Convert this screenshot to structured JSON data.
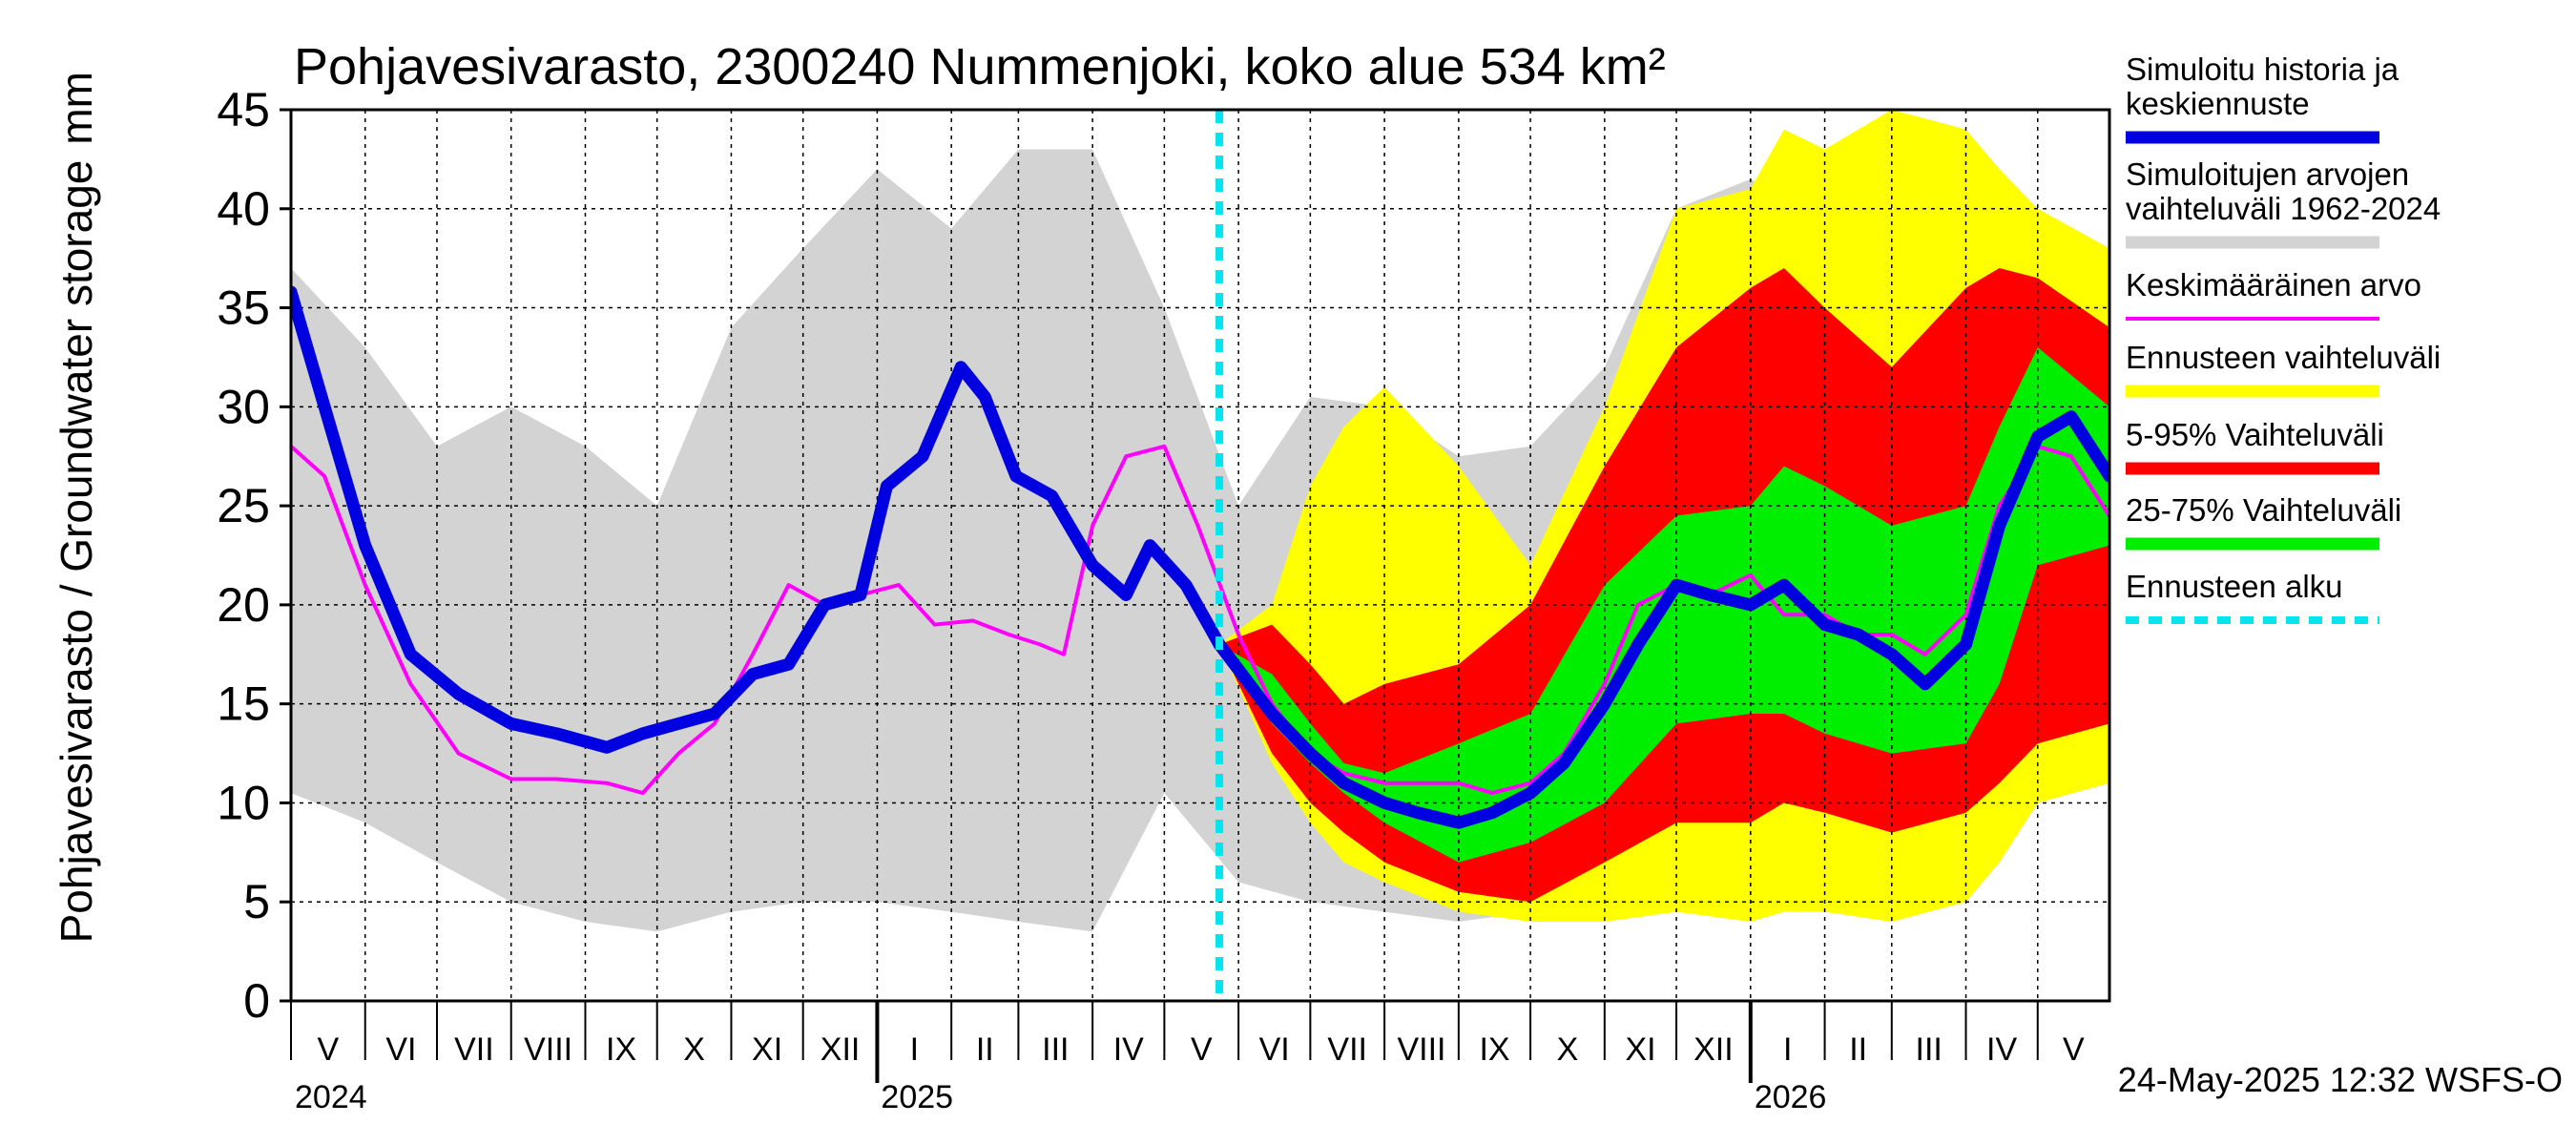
{
  "chart_data": {
    "type": "area",
    "title": "Pohjavesivarasto, 2300240 Nummenjoki, koko alue 534 km²",
    "ylabel": "Pohjavesivarasto / Groundwater storage",
    "yunit": "mm",
    "ylim": [
      0,
      45
    ],
    "yticks": [
      0,
      5,
      10,
      15,
      20,
      25,
      30,
      35,
      40,
      45
    ],
    "xlim": [
      "2024-05-01",
      "2026-05-31"
    ],
    "grid": true,
    "legend_position": "right",
    "timestamp": "24-May-2025 12:32 WSFS-O",
    "forecast_start": "2025-05-24",
    "months": [
      "V",
      "VI",
      "VII",
      "VIII",
      "IX",
      "X",
      "XI",
      "XII",
      "I",
      "II",
      "III",
      "IV",
      "V",
      "VI",
      "VII",
      "VIII",
      "IX",
      "X",
      "XI",
      "XII",
      "I",
      "II",
      "III",
      "IV",
      "V"
    ],
    "years": [
      "2024",
      "2025",
      "2026"
    ],
    "colors": {
      "history": "#0000e0",
      "range_hist": "#d3d3d3",
      "mean": "#ff00ff",
      "forecast_range": "#ffff00",
      "p5_95": "#ff0000",
      "p25_75": "#00ee00",
      "forecast_start": "#00e5ee"
    },
    "legend": [
      {
        "key": "history",
        "label": "Simuloitu historia ja keskiennuste"
      },
      {
        "key": "range_hist",
        "label": "Simuloitujen arvojen vaihteluväli 1962-2024"
      },
      {
        "key": "mean",
        "label": "Keskimääräinen arvo"
      },
      {
        "key": "forecast_range",
        "label": "Ennusteen vaihteluväli"
      },
      {
        "key": "p5_95",
        "label": "5-95% Vaihteluväli"
      },
      {
        "key": "p25_75",
        "label": "25-75% Vaihteluväli"
      },
      {
        "key": "forecast_start",
        "label": "Ennusteen alku"
      }
    ],
    "series": {
      "history": {
        "x": [
          "2024-05-01",
          "2024-05-15",
          "2024-06-01",
          "2024-06-20",
          "2024-07-10",
          "2024-08-01",
          "2024-08-20",
          "2024-09-10",
          "2024-09-25",
          "2024-10-10",
          "2024-10-25",
          "2024-11-10",
          "2024-11-25",
          "2024-12-10",
          "2024-12-25",
          "2025-01-05",
          "2025-01-20",
          "2025-02-05",
          "2025-02-15",
          "2025-02-28",
          "2025-03-15",
          "2025-04-01",
          "2025-04-15",
          "2025-04-25",
          "2025-05-10",
          "2025-05-24"
        ],
        "y": [
          35.8,
          30.0,
          23.0,
          17.5,
          15.5,
          14.0,
          13.5,
          12.8,
          13.5,
          14.0,
          14.5,
          16.5,
          17.0,
          20.0,
          20.5,
          26.0,
          27.5,
          32.0,
          30.5,
          26.5,
          25.5,
          22.0,
          20.5,
          23.0,
          21.0,
          18.0
        ]
      },
      "forecast_median": {
        "x": [
          "2025-05-24",
          "2025-06-15",
          "2025-07-01",
          "2025-07-15",
          "2025-08-01",
          "2025-08-15",
          "2025-09-01",
          "2025-09-15",
          "2025-10-01",
          "2025-10-15",
          "2025-11-01",
          "2025-11-15",
          "2025-12-01",
          "2025-12-15",
          "2026-01-01",
          "2026-01-15",
          "2026-02-01",
          "2026-02-15",
          "2026-03-01",
          "2026-03-15",
          "2026-04-01",
          "2026-04-15",
          "2026-05-01",
          "2026-05-15",
          "2026-05-31"
        ],
        "y": [
          18.0,
          14.5,
          12.5,
          11.0,
          10.0,
          9.5,
          9.0,
          9.5,
          10.5,
          12.0,
          15.0,
          18.0,
          21.0,
          20.5,
          20.0,
          21.0,
          19.0,
          18.5,
          17.5,
          16.0,
          18.0,
          24.0,
          28.5,
          29.5,
          26.5
        ]
      },
      "mean": {
        "x": [
          "2024-05-01",
          "2024-05-15",
          "2024-06-01",
          "2024-06-20",
          "2024-07-10",
          "2024-08-01",
          "2024-08-20",
          "2024-09-10",
          "2024-09-25",
          "2024-10-10",
          "2024-10-25",
          "2024-11-10",
          "2024-11-25",
          "2024-12-10",
          "2024-12-25",
          "2025-01-10",
          "2025-01-25",
          "2025-02-10",
          "2025-02-25",
          "2025-03-10",
          "2025-03-20",
          "2025-04-01",
          "2025-04-15",
          "2025-05-01",
          "2025-05-15",
          "2025-06-01",
          "2025-06-15",
          "2025-07-01",
          "2025-07-15",
          "2025-08-01",
          "2025-08-15",
          "2025-09-01",
          "2025-09-15",
          "2025-10-01",
          "2025-10-15",
          "2025-11-01",
          "2025-11-15",
          "2025-12-01",
          "2025-12-15",
          "2026-01-01",
          "2026-01-15",
          "2026-02-01",
          "2026-02-15",
          "2026-03-01",
          "2026-03-15",
          "2026-04-01",
          "2026-04-15",
          "2026-05-01",
          "2026-05-15",
          "2026-05-31"
        ],
        "y": [
          28.0,
          26.5,
          21.0,
          16.0,
          12.5,
          11.2,
          11.2,
          11.0,
          10.5,
          12.5,
          14.0,
          17.5,
          21.0,
          20.0,
          20.5,
          21.0,
          19.0,
          19.2,
          18.5,
          18.0,
          17.5,
          24.0,
          27.5,
          28.0,
          24.0,
          18.5,
          15.0,
          12.5,
          11.5,
          11.0,
          11.0,
          11.0,
          10.5,
          11.0,
          12.5,
          16.0,
          20.0,
          21.0,
          20.5,
          21.5,
          19.5,
          19.5,
          18.5,
          18.5,
          17.5,
          19.5,
          25.0,
          28.0,
          27.5,
          24.5
        ]
      },
      "range_hist": {
        "x": [
          "2024-05-01",
          "2024-06-01",
          "2024-07-01",
          "2024-08-01",
          "2024-09-01",
          "2024-10-01",
          "2024-11-01",
          "2024-12-01",
          "2025-01-01",
          "2025-02-01",
          "2025-03-01",
          "2025-04-01",
          "2025-05-01",
          "2025-06-01",
          "2025-07-01",
          "2025-08-01",
          "2025-09-01",
          "2025-10-01",
          "2025-11-01",
          "2025-12-01",
          "2026-01-01",
          "2026-02-01",
          "2026-03-01",
          "2026-04-01",
          "2026-05-01",
          "2026-05-31"
        ],
        "low": [
          10.5,
          9.0,
          7.0,
          5.0,
          4.0,
          3.5,
          4.5,
          5.0,
          5.0,
          4.5,
          4.0,
          3.5,
          10.5,
          6.0,
          5.0,
          4.5,
          4.0,
          4.5,
          5.0,
          5.5,
          5.0,
          4.5,
          4.0,
          5.0,
          11.0,
          11.0
        ],
        "high": [
          37.0,
          33.0,
          28.0,
          30.0,
          28.0,
          25.0,
          34.0,
          38.0,
          42.0,
          39.0,
          43.0,
          43.0,
          35.0,
          25.0,
          30.5,
          30.0,
          27.5,
          28.0,
          32.0,
          40.0,
          41.5,
          39.5,
          43.0,
          41.0,
          38.0,
          34.0
        ]
      },
      "forecast_range": {
        "x": [
          "2025-05-24",
          "2025-06-15",
          "2025-07-01",
          "2025-07-15",
          "2025-08-01",
          "2025-09-01",
          "2025-10-01",
          "2025-11-01",
          "2025-12-01",
          "2026-01-01",
          "2026-01-15",
          "2026-02-01",
          "2026-03-01",
          "2026-04-01",
          "2026-04-15",
          "2026-05-01",
          "2026-05-31"
        ],
        "low": [
          18.0,
          12.0,
          9.0,
          7.0,
          6.0,
          4.5,
          4.0,
          4.0,
          4.5,
          4.0,
          4.5,
          4.5,
          4.0,
          5.0,
          7.0,
          10.0,
          11.0
        ],
        "high": [
          18.0,
          20.0,
          26.0,
          29.0,
          31.0,
          27.0,
          22.0,
          30.0,
          40.0,
          41.0,
          44.0,
          43.0,
          45.0,
          44.0,
          42.0,
          40.0,
          38.0
        ]
      },
      "p5_95": {
        "x": [
          "2025-05-24",
          "2025-06-15",
          "2025-07-01",
          "2025-07-15",
          "2025-08-01",
          "2025-09-01",
          "2025-10-01",
          "2025-11-01",
          "2025-12-01",
          "2026-01-01",
          "2026-01-15",
          "2026-02-01",
          "2026-03-01",
          "2026-04-01",
          "2026-04-15",
          "2026-05-01",
          "2026-05-31"
        ],
        "low": [
          18.0,
          12.5,
          10.0,
          8.5,
          7.0,
          5.5,
          5.0,
          7.0,
          9.0,
          9.0,
          10.0,
          9.5,
          8.5,
          9.5,
          11.0,
          13.0,
          14.0
        ],
        "high": [
          18.0,
          19.0,
          17.0,
          15.0,
          16.0,
          17.0,
          20.0,
          27.0,
          33.0,
          36.0,
          37.0,
          35.0,
          32.0,
          36.0,
          37.0,
          36.5,
          34.0
        ]
      },
      "p25_75": {
        "x": [
          "2025-05-24",
          "2025-06-15",
          "2025-07-01",
          "2025-07-15",
          "2025-08-01",
          "2025-09-01",
          "2025-10-01",
          "2025-11-01",
          "2025-12-01",
          "2026-01-01",
          "2026-01-15",
          "2026-02-01",
          "2026-03-01",
          "2026-04-01",
          "2026-04-15",
          "2026-05-01",
          "2026-05-31"
        ],
        "low": [
          18.0,
          14.0,
          12.0,
          10.5,
          9.0,
          7.0,
          8.0,
          10.0,
          14.0,
          14.5,
          14.5,
          13.5,
          12.5,
          13.0,
          16.0,
          22.0,
          23.0
        ],
        "high": [
          18.0,
          16.5,
          14.0,
          12.0,
          11.5,
          13.0,
          14.5,
          21.0,
          24.5,
          25.0,
          27.0,
          26.0,
          24.0,
          25.0,
          29.0,
          33.0,
          30.0
        ]
      }
    }
  }
}
